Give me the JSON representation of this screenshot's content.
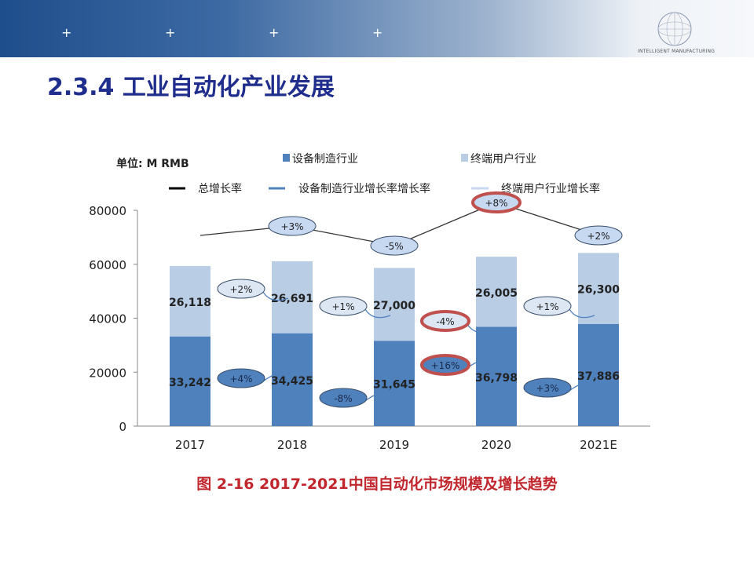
{
  "header": {
    "plus_icons": [
      "+",
      "+",
      "+",
      "+"
    ],
    "logo_text": "INTELLIGENT MANUFACTURING"
  },
  "title": "2.3.4 工业自动化产业发展",
  "caption": "图 2-16 2017-2021中国自动化市场规模及增长趋势",
  "chart_data": {
    "type": "bar",
    "stacked": true,
    "unit_label": "单位: M RMB",
    "categories": [
      "2017",
      "2018",
      "2019",
      "2020",
      "2021E"
    ],
    "series": [
      {
        "name": "设备制造行业",
        "color": "#4f81bd",
        "values": [
          33242,
          34425,
          31645,
          36798,
          37886
        ],
        "labels": [
          "33,242",
          "34,425",
          "31,645",
          "36,798",
          "37,886"
        ]
      },
      {
        "name": "终端用户行业",
        "color": "#b9cde5",
        "values": [
          26118,
          26691,
          27000,
          26005,
          26300
        ],
        "labels": [
          "26,118",
          "26,691",
          "27,000",
          "26,005",
          "26,300"
        ]
      }
    ],
    "line_legend": [
      {
        "name": "总增长率",
        "color": "#000000"
      },
      {
        "name": "设备制造行业增长率增长率",
        "color": "#4f81bd"
      },
      {
        "name": "终端用户行业增长率",
        "color": "#c6d9f1"
      }
    ],
    "total_growth": [
      "+3%",
      "-5%",
      "+8%",
      "+2%"
    ],
    "equipment_growth": [
      "+4%",
      "-8%",
      "+16%",
      "+3%"
    ],
    "enduser_growth": [
      "+2%",
      "+1%",
      "-4%",
      "+1%"
    ],
    "highlighted": [
      "total:+8%",
      "equipment:+16%",
      "enduser:-4%"
    ],
    "highlight_color": "#c0504d",
    "ylim": [
      0,
      80000
    ],
    "yticks": [
      "0",
      "20000",
      "40000",
      "60000",
      "80000"
    ],
    "grid": false,
    "legend": "top"
  }
}
